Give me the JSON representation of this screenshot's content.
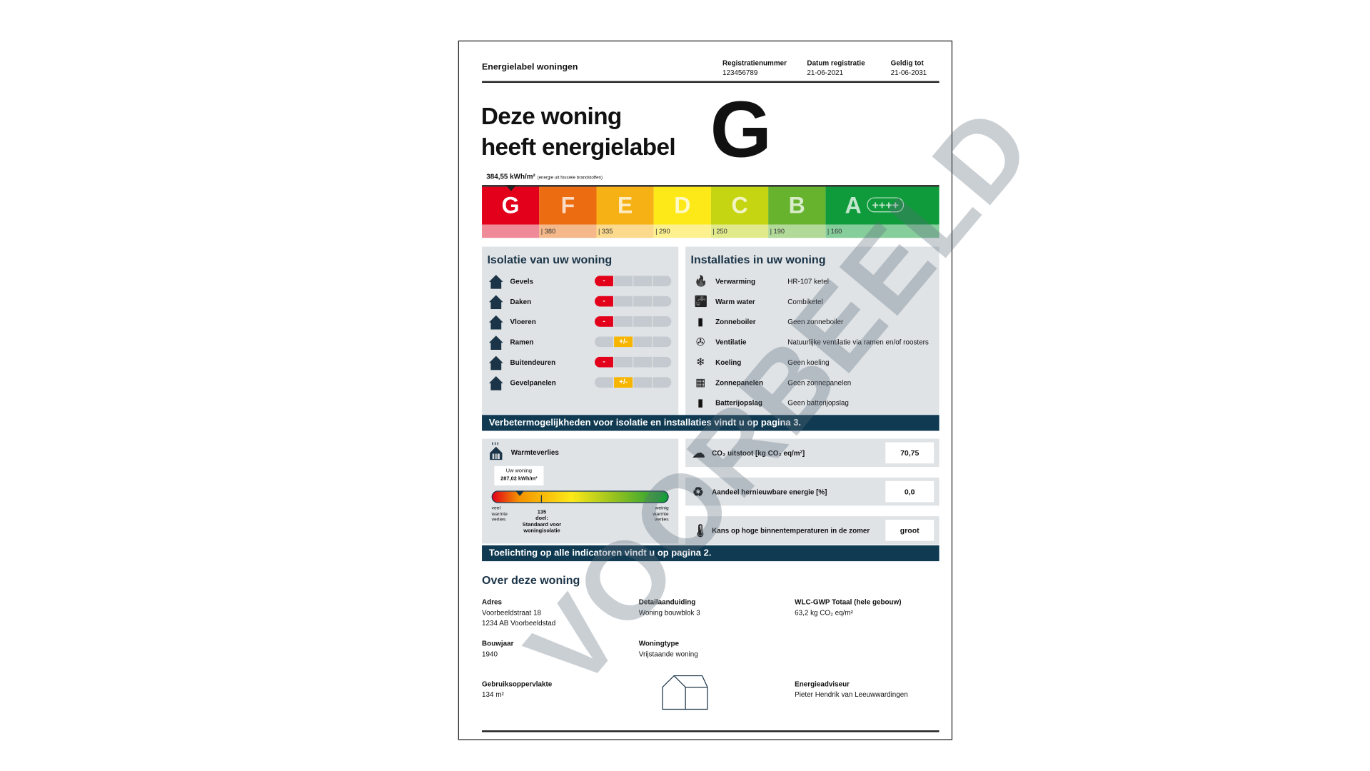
{
  "header": {
    "doc_title": "Energielabel woningen",
    "registration": [
      {
        "label": "Registratienummer",
        "value": "123456789"
      },
      {
        "label": "Datum registratie",
        "value": "21-06-2021"
      },
      {
        "label": "Geldig tot",
        "value": "21-06-2031"
      }
    ]
  },
  "headline": {
    "line1": "Deze woning",
    "line2": "heeft energielabel",
    "label": "G"
  },
  "energy": {
    "value": "384,55 kWh/m²",
    "note": "(energie uit fossiele brandstoffen)",
    "classes": [
      {
        "letter": "G",
        "color": "#e2001a",
        "light": "#ef8b98",
        "threshold": ""
      },
      {
        "letter": "F",
        "color": "#ec6c12",
        "light": "#f5b88a",
        "threshold": "| 380"
      },
      {
        "letter": "E",
        "color": "#f6b114",
        "light": "#fbd98d",
        "threshold": "| 335"
      },
      {
        "letter": "D",
        "color": "#fde818",
        "light": "#fdf18f",
        "threshold": "| 290"
      },
      {
        "letter": "C",
        "color": "#c6d512",
        "light": "#e1ea8b",
        "threshold": "| 250"
      },
      {
        "letter": "B",
        "color": "#67b32e",
        "light": "#b1d998",
        "threshold": "| 190"
      },
      {
        "letter": "A",
        "color": "#0f9b3b",
        "light": "#86cd9c",
        "threshold": "| 160"
      }
    ],
    "a_plus": "++++",
    "current": "G"
  },
  "isolatie": {
    "title": "Isolatie van uw woning",
    "items": [
      {
        "label": "Gevels",
        "score": "-",
        "level": 1
      },
      {
        "label": "Daken",
        "score": "-",
        "level": 1
      },
      {
        "label": "Vloeren",
        "score": "-",
        "level": 1
      },
      {
        "label": "Ramen",
        "score": "+/-",
        "level": 2
      },
      {
        "label": "Buitendeuren",
        "score": "-",
        "level": 1
      },
      {
        "label": "Gevelpanelen",
        "score": "+/-",
        "level": 2
      }
    ]
  },
  "installaties": {
    "title": "Installaties in uw woning",
    "items": [
      {
        "label": "Verwarming",
        "value": "HR-107 ketel",
        "icon": "flame-icon"
      },
      {
        "label": "Warm water",
        "value": "Combiketel",
        "icon": "tap-icon"
      },
      {
        "label": "Zonneboiler",
        "value": "Geen zonneboiler",
        "icon": "solar-boiler-icon"
      },
      {
        "label": "Ventilatie",
        "value": "Natuurlijke ventilatie via ramen en/of roosters",
        "icon": "fan-icon"
      },
      {
        "label": "Koeling",
        "value": "Geen koeling",
        "icon": "snowflake-icon"
      },
      {
        "label": "Zonnepanelen",
        "value": "Geen zonnepanelen",
        "icon": "solar-panel-icon"
      },
      {
        "label": "Batterijopslag",
        "value": "Geen batterijopslag",
        "icon": "battery-icon"
      }
    ]
  },
  "banner1": "Verbetermogelijkheden voor isolatie en installaties vindt u op pagina 3.",
  "warmteverlies": {
    "title": "Warmteverlies",
    "tag_label": "Uw woning",
    "tag_value": "287,02 kWh/m²",
    "left": "veel warmte verlies",
    "right": "weinig warmte verlies",
    "target_value": "135",
    "target_label": "doel:",
    "target_desc": "Standaard voor woningisolatie"
  },
  "indicators": [
    {
      "label": "CO₂ uitstoot [kg CO₂ eq/m²]",
      "value": "70,75",
      "icon": "co2-cloud-icon"
    },
    {
      "label": "Aandeel hernieuwbare energie [%]",
      "value": "0,0",
      "icon": "renewable-icon"
    },
    {
      "label": "Kans op hoge binnentemperaturen in de zomer",
      "value": "groot",
      "icon": "thermometer-warning-icon"
    }
  ],
  "banner2": "Toelichting op alle indicatoren vindt u op pagina 2.",
  "over": {
    "title": "Over deze woning",
    "adres": {
      "label": "Adres",
      "line1": "Voorbeeldstraat 18",
      "line2": "1234 AB Voorbeeldstad"
    },
    "detail": {
      "label": "Detailaanduiding",
      "value": "Woning bouwblok 3"
    },
    "wlc": {
      "label": "WLC-GWP Totaal (hele gebouw)",
      "value": "63,2 kg CO₂ eq/m²"
    },
    "bouwjaar": {
      "label": "Bouwjaar",
      "value": "1940"
    },
    "type": {
      "label": "Woningtype",
      "value": "Vrijstaande woning"
    },
    "opp": {
      "label": "Gebruiksoppervlakte",
      "value": "134 m²"
    },
    "adviseur": {
      "label": "Energieadviseur",
      "value": "Pieter Hendrik van Leeuwwardingen"
    }
  },
  "watermark": "VOORBEELD"
}
